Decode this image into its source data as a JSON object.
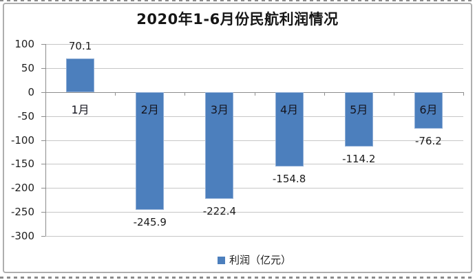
{
  "page": {
    "background": "#ffffff",
    "frame_border_color": "#aeaeae"
  },
  "chart_data": {
    "type": "bar",
    "title": "2020年1-6月份民航利润情况",
    "categories": [
      "1月",
      "2月",
      "3月",
      "4月",
      "5月",
      "6月"
    ],
    "series": [
      {
        "name": "利润（亿元）",
        "values": [
          70.1,
          -245.9,
          -222.4,
          -154.8,
          -114.2,
          -76.2
        ]
      }
    ],
    "data_labels": [
      "70.1",
      "-245.9",
      "-222.4",
      "-154.8",
      "-114.2",
      "-76.2"
    ],
    "yticks": [
      100,
      50,
      0,
      -50,
      -100,
      -150,
      -200,
      -250,
      -300
    ],
    "ylim": [
      -300,
      100
    ],
    "xlabel": "",
    "ylabel": "",
    "grid": true,
    "legend": {
      "position": "bottom",
      "entries": [
        "利润（亿元）"
      ]
    },
    "colors": {
      "bar": "#4c7fbd",
      "bar_border": "#90aed6",
      "gridline": "#c6c6c6",
      "axis": "#8c8c8c",
      "text": "#1e1e1e"
    }
  }
}
